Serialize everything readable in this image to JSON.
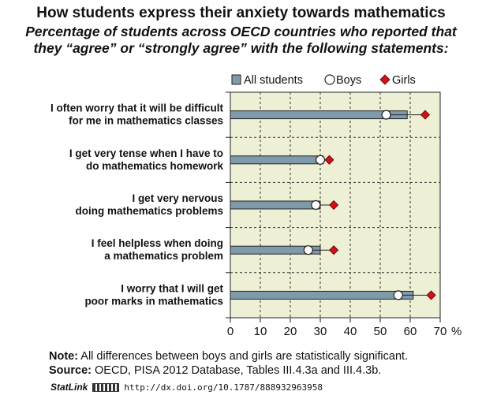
{
  "title": "How students express their anxiety towards mathematics",
  "subtitle_lines": [
    "Percentage of students across OECD countries who reported that",
    "they “agree” or “strongly agree” with the following statements:"
  ],
  "colors": {
    "bar_fill": "#7f9bab",
    "plot_background": "#eef0d6",
    "boys_marker": "#ffffff",
    "girls_marker": "#d0101a",
    "grid": "#333333"
  },
  "chart_data": {
    "type": "bar",
    "orientation": "horizontal",
    "categories": [
      [
        "I often worry that it will be difficult",
        "for me in mathematics classes"
      ],
      [
        "I get very tense when I have to",
        "do mathematics homework"
      ],
      [
        "I get very nervous",
        "doing mathematics problems"
      ],
      [
        "I feel helpless when doing",
        "a mathematics problem"
      ],
      [
        "I worry that I will get",
        "poor marks in mathematics"
      ]
    ],
    "series": [
      {
        "name": "All students",
        "mark": "bar",
        "values": [
          59,
          31,
          30,
          30,
          61
        ]
      },
      {
        "name": "Boys",
        "mark": "circle",
        "values": [
          52,
          30,
          28.5,
          26,
          56
        ]
      },
      {
        "name": "Girls",
        "mark": "diamond",
        "values": [
          65,
          33,
          34.5,
          34.5,
          67
        ]
      }
    ],
    "xlim": [
      0,
      70
    ],
    "xticks": [
      0,
      10,
      20,
      30,
      40,
      50,
      60,
      70
    ],
    "x_unit_label": "%",
    "grid": "vertical dashed",
    "legend_position": "top-right"
  },
  "notes": {
    "note_label": "Note:",
    "note_text": " All differences between boys and girls are statistically significant.",
    "source_label": "Source:",
    "source_text": " OECD, PISA 2012 Database, Tables III.4.3a and III.4.3b.",
    "statlink_label": "StatLink",
    "statlink_url": "http://dx.doi.org/10.1787/888932963958"
  }
}
